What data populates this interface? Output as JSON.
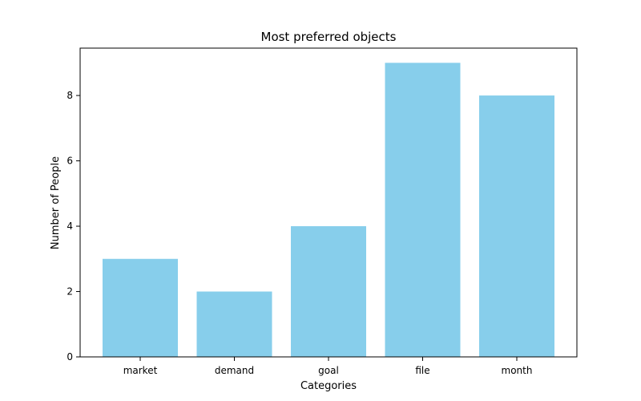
{
  "chart_data": {
    "type": "bar",
    "title": "Most preferred objects",
    "xlabel": "Categories",
    "ylabel": "Number of People",
    "categories": [
      "market",
      "demand",
      "goal",
      "file",
      "month"
    ],
    "values": [
      3,
      2,
      4,
      9,
      8
    ],
    "ylim": [
      0,
      9.45
    ],
    "yticks": [
      0,
      2,
      4,
      6,
      8
    ],
    "bar_color": "#87CEEB",
    "grid": false,
    "legend": "none"
  }
}
